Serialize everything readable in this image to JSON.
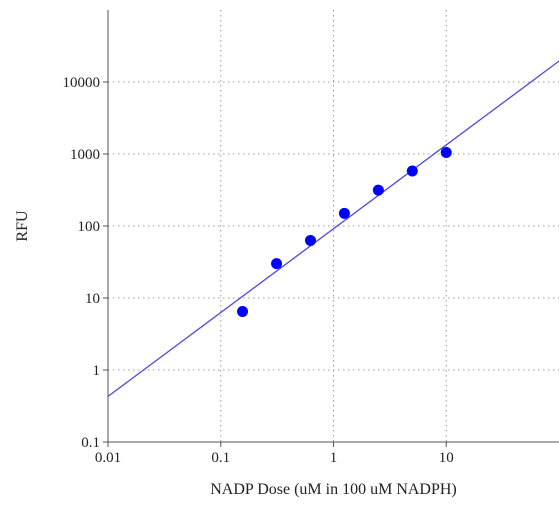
{
  "chart_data": {
    "type": "scatter",
    "xlabel": "NADP Dose (uM in 100 uM NADPH)",
    "ylabel": "RFU",
    "x_scale": "log",
    "y_scale": "log",
    "xlim": [
      0.01,
      100
    ],
    "ylim": [
      0.1,
      100000
    ],
    "x_ticks": [
      {
        "value": 0.01,
        "label": "0.01"
      },
      {
        "value": 0.1,
        "label": "0.1"
      },
      {
        "value": 1,
        "label": "1"
      },
      {
        "value": 10,
        "label": "10"
      }
    ],
    "y_ticks": [
      {
        "value": 0.1,
        "label": "0.1"
      },
      {
        "value": 1,
        "label": "1"
      },
      {
        "value": 10,
        "label": "10"
      },
      {
        "value": 100,
        "label": "100"
      },
      {
        "value": 1000,
        "label": "1000"
      },
      {
        "value": 10000,
        "label": "10000"
      }
    ],
    "grid": true,
    "series": [
      {
        "type": "scatter",
        "color": "#0000ff",
        "points": [
          {
            "x": 0.156,
            "y": 6.5
          },
          {
            "x": 0.3125,
            "y": 30
          },
          {
            "x": 0.625,
            "y": 63
          },
          {
            "x": 1.25,
            "y": 150
          },
          {
            "x": 2.5,
            "y": 315
          },
          {
            "x": 5,
            "y": 580
          },
          {
            "x": 10,
            "y": 1050
          }
        ]
      },
      {
        "type": "line",
        "color": "#4a4adf",
        "points": [
          {
            "x": 0.01,
            "y": 0.43
          },
          {
            "x": 100,
            "y": 19500
          }
        ]
      }
    ]
  }
}
